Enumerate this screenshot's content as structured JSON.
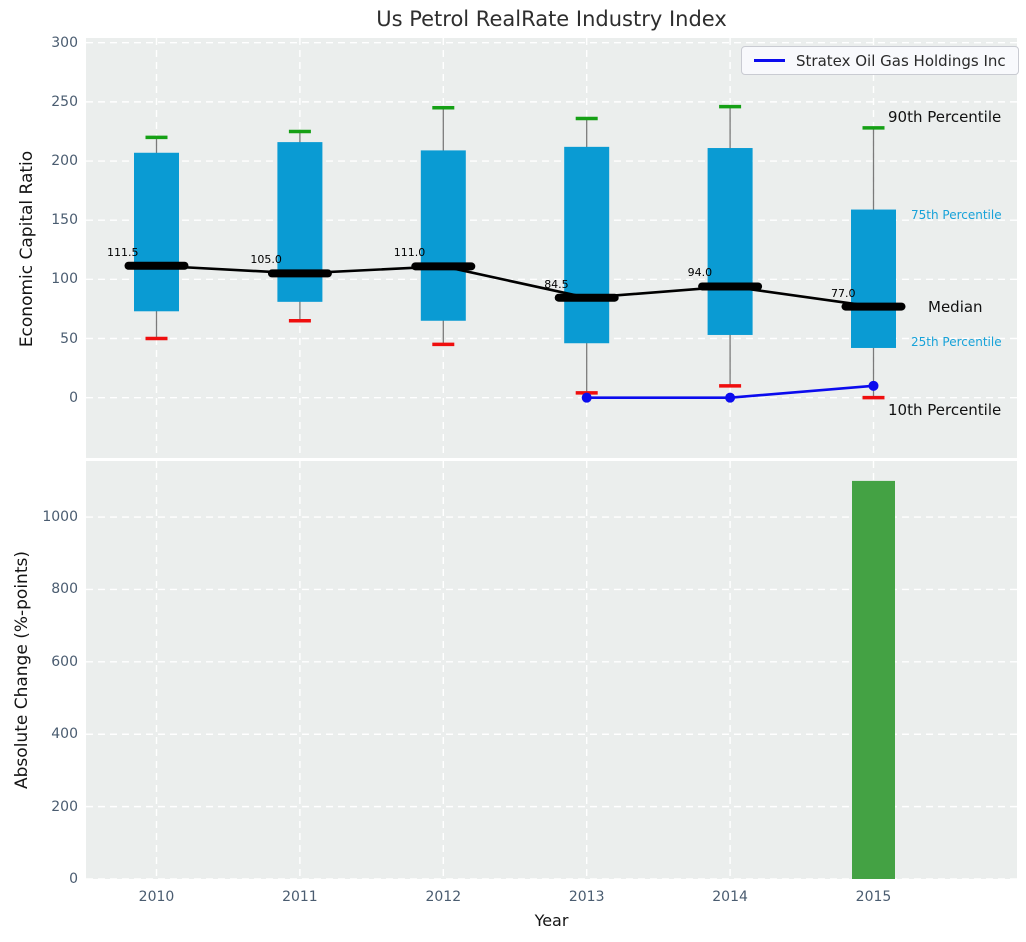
{
  "title": "Us Petrol RealRate Industry Index",
  "colors": {
    "plot_bg": "#ebeeed",
    "grid": "#ffffff",
    "box_fill": "#0a9bd3",
    "cap_90th": "#15a015",
    "cap_10th": "#ef0e0e",
    "whisker": "#7a7a7a",
    "median": "#000000",
    "company_line": "#0b0bee",
    "bar_fill": "#44a244",
    "tick_text": "#4a5c70",
    "annotation_cyan": "#17a2d9"
  },
  "chart_data": [
    {
      "type": "boxplot+line",
      "title": "Us Petrol RealRate Industry Index",
      "ylabel": "Economic Capital Ratio",
      "categories": [
        "2010",
        "2011",
        "2012",
        "2013",
        "2014",
        "2015"
      ],
      "series": [
        {
          "name": "90th Percentile",
          "values": [
            220,
            225,
            245,
            236,
            246,
            228
          ]
        },
        {
          "name": "75th Percentile",
          "values": [
            207,
            216,
            209,
            212,
            211,
            159
          ]
        },
        {
          "name": "Median",
          "values": [
            111.5,
            105.0,
            111.0,
            84.5,
            94.0,
            77.0
          ]
        },
        {
          "name": "25th Percentile",
          "values": [
            73,
            81,
            65,
            46,
            53,
            42
          ]
        },
        {
          "name": "10th Percentile",
          "values": [
            50,
            65,
            45,
            4,
            10,
            0
          ]
        },
        {
          "name": "Stratex Oil Gas Holdings Inc",
          "values": [
            null,
            null,
            null,
            0,
            0,
            10
          ]
        }
      ],
      "median_labels": [
        "111.5",
        "105.0",
        "111.0",
        "84.5",
        "94.0",
        "77.0"
      ],
      "yticks": [
        0,
        50,
        100,
        150,
        200,
        250,
        300
      ],
      "ylim": [
        -51,
        304
      ],
      "grid": true,
      "legend": {
        "label": "Stratex Oil Gas Holdings Inc",
        "position": "upper right"
      },
      "annotations": {
        "p90": "90th Percentile",
        "p75": "75th Percentile",
        "median": "Median",
        "p25": "25th Percentile",
        "p10": "10th Percentile"
      }
    },
    {
      "type": "bar",
      "ylabel": "Absolute Change (%-points)",
      "xlabel": "Year",
      "categories": [
        "2010",
        "2011",
        "2012",
        "2013",
        "2014",
        "2015"
      ],
      "values": [
        null,
        null,
        null,
        null,
        null,
        1100
      ],
      "yticks": [
        0,
        200,
        400,
        600,
        800,
        1000
      ],
      "ylim": [
        0,
        1155
      ],
      "grid": true
    }
  ]
}
